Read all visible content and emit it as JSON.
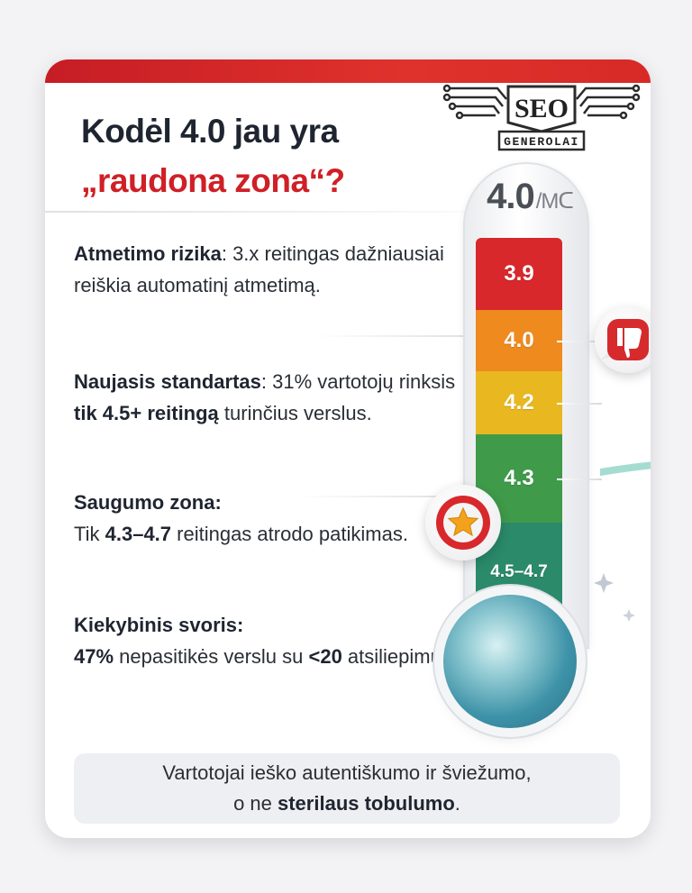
{
  "header": {
    "title_line1": "Kodėl 4.0 jau yra",
    "title_line2": "„raudona zona“?"
  },
  "logo": {
    "brand": "SEO",
    "subtitle": "GENEROLAI",
    "icon": "winged-circuit-badge-icon"
  },
  "points": [
    {
      "label": "Atmetimo rizika",
      "punct": ":",
      "text": " 3.x reitingas dažniausiai reiškia automatinį atmetimą."
    },
    {
      "label": "Naujasis standartas",
      "punct": ":",
      "text_a": " 31% vartotojų rinksis ",
      "bold": "tik 4.5+ reitingą",
      "text_b": " turinčius verslus."
    },
    {
      "label": "Saugumo zona:",
      "text_a": "Tik ",
      "bold": "4.3–4.7",
      "text_b": " reitingas atrodo patikimas."
    },
    {
      "label": "Kiekybinis svoris:",
      "bold_a": "47%",
      "text_a": " nepasitikės verslu su ",
      "bold_b": "<20",
      "text_b": " atsiliepimų."
    }
  ],
  "thermometer": {
    "scale_value": "4.0",
    "scale_unit": "/Mᑕ",
    "segments": [
      {
        "label": "3.9",
        "color": "#d8282c"
      },
      {
        "label": "4.0",
        "color": "#ef8a1f"
      },
      {
        "label": "4.2",
        "color": "#e9b820"
      },
      {
        "label": "4.3",
        "color": "#3f9a4a"
      },
      {
        "label": "4.5–4.7",
        "color": "#2a8a6a"
      }
    ]
  },
  "icons": {
    "thumb": "thumbs-down-icon",
    "star": "star-icon",
    "arrow": "arrow-right-icon",
    "sparkle": "sparkle-icon"
  },
  "footer": {
    "line1": "Vartotojai ieško autentiškumo ir šviežumo,",
    "line2_a": "o ne ",
    "line2_bold": "sterilaus tobulumo",
    "line2_b": "."
  },
  "colors": {
    "accent_red": "#cf2027",
    "text_dark": "#1f2530"
  }
}
